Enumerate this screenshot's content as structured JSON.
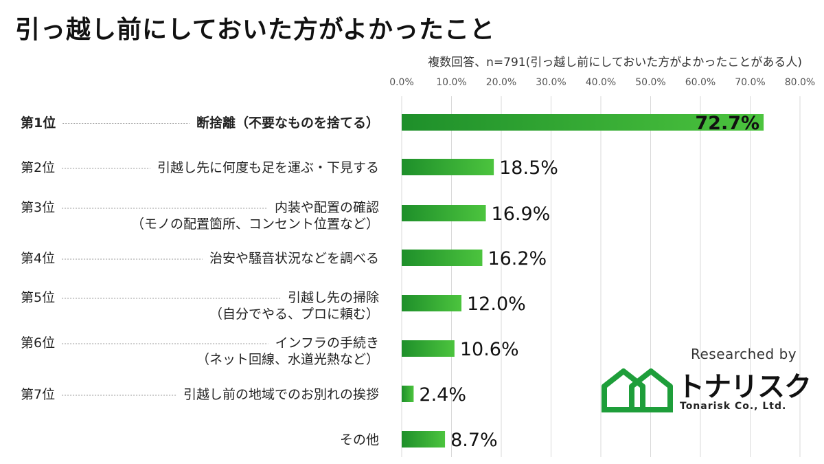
{
  "chart_data": {
    "type": "bar",
    "orientation": "horizontal",
    "title": "引っ越し前にしておいた方がよかったこと",
    "subtitle": "複数回答、n=791(引っ越し前にしておいた方がよかったことがある人)",
    "xlim": [
      0,
      80
    ],
    "ticks": [
      "0.0%",
      "10.0%",
      "20.0%",
      "30.0%",
      "40.0%",
      "50.0%",
      "60.0%",
      "70.0%",
      "80.0%"
    ],
    "tick_values": [
      0,
      10,
      20,
      30,
      40,
      50,
      60,
      70,
      80
    ],
    "grid": true,
    "items": [
      {
        "rank": "第1位",
        "label": [
          "断捨離（不要なものを捨てる）"
        ],
        "value": 72.7,
        "value_label": "72.7%",
        "bold": true
      },
      {
        "rank": "第2位",
        "label": [
          "引越し先に何度も足を運ぶ・下見する"
        ],
        "value": 18.5,
        "value_label": "18.5%"
      },
      {
        "rank": "第3位",
        "label": [
          "内装や配置の確認",
          "（モノの配置箇所、コンセント位置など）"
        ],
        "value": 16.9,
        "value_label": "16.9%"
      },
      {
        "rank": "第4位",
        "label": [
          "治安や騒音状況などを調べる"
        ],
        "value": 16.2,
        "value_label": "16.2%"
      },
      {
        "rank": "第5位",
        "label": [
          "引越し先の掃除",
          "（自分でやる、プロに頼む）"
        ],
        "value": 12.0,
        "value_label": "12.0%"
      },
      {
        "rank": "第6位",
        "label": [
          "インフラの手続き",
          "（ネット回線、水道光熱など）"
        ],
        "value": 10.6,
        "value_label": "10.6%"
      },
      {
        "rank": "第7位",
        "label": [
          "引越し前の地域でのお別れの挨拶"
        ],
        "value": 2.4,
        "value_label": "2.4%"
      },
      {
        "rank": "",
        "label": [
          "その他"
        ],
        "value": 8.7,
        "value_label": "8.7%"
      }
    ],
    "colors": {
      "bar_dark": "#1e8f2a",
      "bar_light": "#4cc43e",
      "grid": "#d9d9d9"
    }
  },
  "branding": {
    "researched_by": "Researched by",
    "name": "トナリスク",
    "name_en": "Tonarisk Co., Ltd.",
    "logo_color": "#1e9e3a"
  }
}
